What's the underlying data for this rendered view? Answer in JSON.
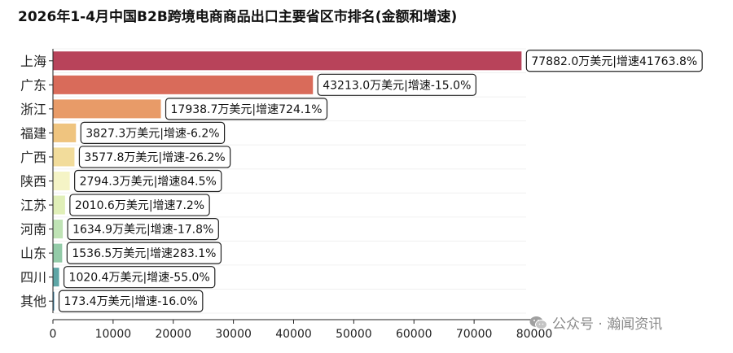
{
  "chart_data": {
    "type": "bar",
    "orientation": "horizontal",
    "title": "2026年1-4月中国B2B跨境电商商品出口主要省区市排名(金额和增速)",
    "categories": [
      "上海",
      "广东",
      "浙江",
      "福建",
      "广西",
      "陕西",
      "江苏",
      "河南",
      "山东",
      "四川",
      "其他"
    ],
    "values": [
      77882.0,
      43213.0,
      17938.7,
      3827.3,
      3577.8,
      2794.3,
      2010.6,
      1634.9,
      1536.5,
      1020.4,
      173.4
    ],
    "data_labels": [
      "77882.0万美元|增速41763.8%",
      "43213.0万美元|增速-15.0%",
      "17938.7万美元|增速724.1%",
      "3827.3万美元|增速-6.2%",
      "3577.8万美元|增速-26.2%",
      "2794.3万美元|增速84.5%",
      "2010.6万美元|增速7.2%",
      "1634.9万美元|增速-17.8%",
      "1536.5万美元|增速283.1%",
      "1020.4万美元|增速-55.0%",
      "173.4万美元|增速-16.0%"
    ],
    "bar_colors": [
      "#b8435a",
      "#d96b5a",
      "#e89b68",
      "#efc47f",
      "#f2dc9b",
      "#f5f4c6",
      "#e0efb8",
      "#bfe3b5",
      "#93cba8",
      "#5ea6a6",
      "#3a7fa0"
    ],
    "xlim": [
      0,
      80000
    ],
    "xticks": [
      0,
      10000,
      20000,
      30000,
      40000,
      50000,
      60000,
      70000,
      80000
    ],
    "xtick_labels": [
      "0",
      "10000",
      "20000",
      "30000",
      "40000",
      "50000",
      "60000",
      "70000",
      "80000"
    ],
    "xlabel": "",
    "ylabel": "",
    "grid": true,
    "legend": "none"
  },
  "watermark": {
    "text": "公众号 · 瀚闻资讯",
    "icon": "wechat-icon"
  }
}
